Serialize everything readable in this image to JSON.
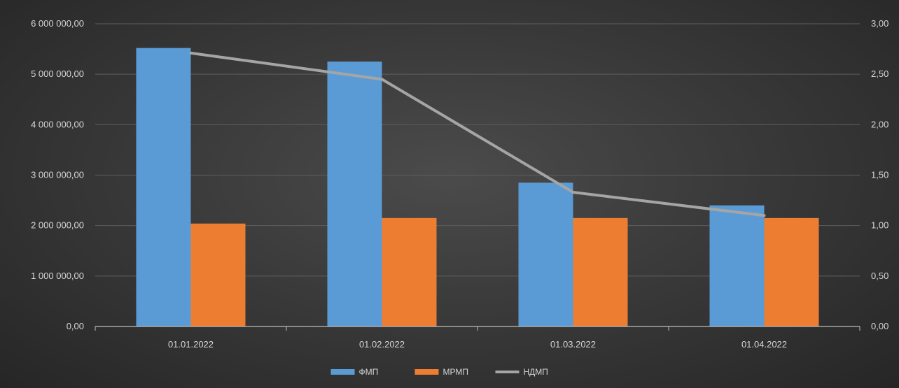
{
  "chart_data": {
    "type": "bar",
    "categories": [
      "01.01.2022",
      "01.02.2022",
      "01.03.2022",
      "01.04.2022"
    ],
    "series": [
      {
        "name": "ФМП",
        "type": "bar",
        "axis": "left",
        "color": "#5b9bd5",
        "values": [
          5520000,
          5250000,
          2850000,
          2400000
        ]
      },
      {
        "name": "МРМП",
        "type": "bar",
        "axis": "left",
        "color": "#ed7d31",
        "values": [
          2040000,
          2150000,
          2150000,
          2150000
        ]
      },
      {
        "name": "НДМП",
        "type": "line",
        "axis": "right",
        "color": "#a5a5a5",
        "values": [
          2.71,
          2.45,
          1.33,
          1.1
        ]
      }
    ],
    "y_left": {
      "min": 0,
      "max": 6000000,
      "ticks": [
        "0,00",
        "1 000 000,00",
        "2 000 000,00",
        "3 000 000,00",
        "4 000 000,00",
        "5 000 000,00",
        "6 000 000,00"
      ]
    },
    "y_right": {
      "min": 0,
      "max": 3,
      "ticks": [
        "0,00",
        "0,50",
        "1,00",
        "1,50",
        "2,00",
        "2,50",
        "3,00"
      ]
    },
    "grid": true,
    "legend_position": "bottom"
  }
}
